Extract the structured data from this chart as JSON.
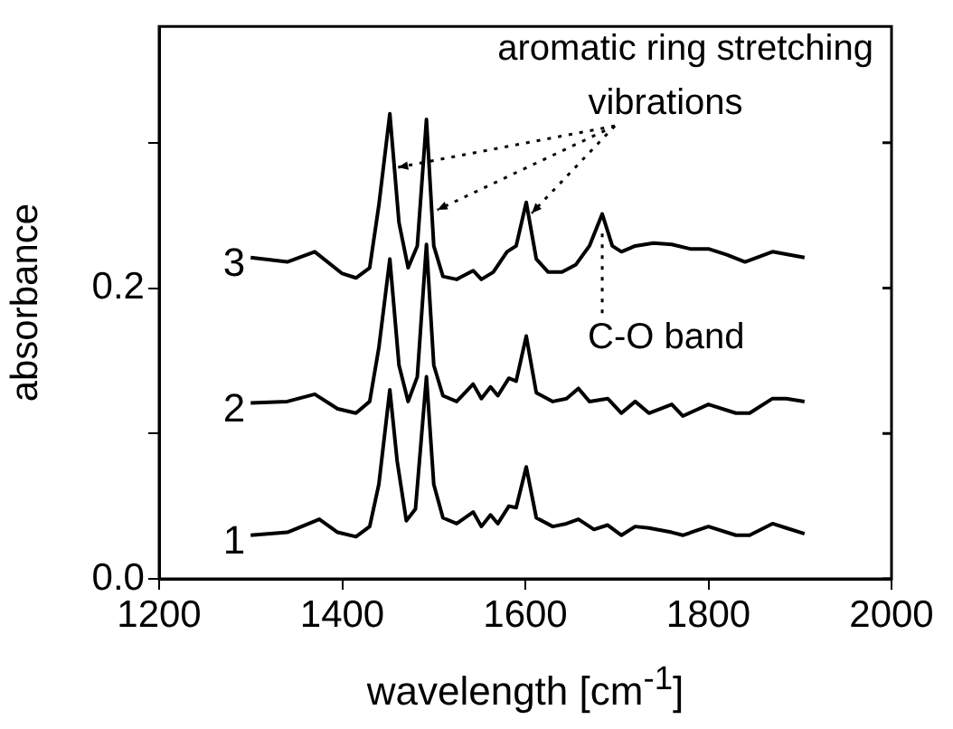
{
  "chart_data": {
    "type": "line",
    "xlabel": "wavelength [cm$^{-1}$]",
    "ylabel": "absorbance",
    "xlim": [
      1200,
      2000
    ],
    "xticks": [
      1200,
      1400,
      1600,
      1800,
      2000
    ],
    "ylim": [
      0,
      0.38
    ],
    "yticks": [
      {
        "value": 0,
        "label": "0.0"
      },
      {
        "value": 0.1,
        "label": null
      },
      {
        "value": 0.2,
        "label": "0.2"
      },
      {
        "value": 0.3,
        "label": null
      }
    ],
    "grid": false,
    "legend": false,
    "marker": "none",
    "line_style": "solid",
    "annotations": [
      {
        "text": "aromatic ring stretching vibrations",
        "x": 1461,
        "y": 0.283
      },
      {
        "text": "C-O band",
        "x": 1684,
        "y": 0.245
      }
    ],
    "series": [
      {
        "name": "1",
        "color": "#000000",
        "x": [
          1300,
          1340,
          1375,
          1395,
          1415,
          1430,
          1440,
          1452,
          1460,
          1470,
          1480,
          1492,
          1500,
          1510,
          1525,
          1543,
          1552,
          1562,
          1570,
          1582,
          1590,
          1601,
          1612,
          1630,
          1645,
          1658,
          1675,
          1690,
          1705,
          1720,
          1735,
          1760,
          1772,
          1800,
          1830,
          1845,
          1870,
          1885,
          1905
        ],
        "values": [
          0.03,
          0.032,
          0.041,
          0.032,
          0.029,
          0.036,
          0.065,
          0.13,
          0.081,
          0.04,
          0.048,
          0.139,
          0.065,
          0.042,
          0.038,
          0.046,
          0.036,
          0.044,
          0.038,
          0.05,
          0.049,
          0.077,
          0.042,
          0.036,
          0.038,
          0.041,
          0.034,
          0.037,
          0.03,
          0.036,
          0.035,
          0.032,
          0.03,
          0.036,
          0.03,
          0.03,
          0.038,
          0.035,
          0.031
        ]
      },
      {
        "name": "2",
        "color": "#000000",
        "x": [
          1300,
          1340,
          1370,
          1395,
          1415,
          1430,
          1440,
          1452,
          1462,
          1472,
          1482,
          1492,
          1500,
          1510,
          1525,
          1543,
          1552,
          1562,
          1570,
          1582,
          1590,
          1601,
          1612,
          1630,
          1645,
          1658,
          1670,
          1690,
          1705,
          1720,
          1735,
          1760,
          1772,
          1800,
          1830,
          1845,
          1870,
          1885,
          1905
        ],
        "values": [
          0.121,
          0.122,
          0.127,
          0.117,
          0.114,
          0.122,
          0.159,
          0.22,
          0.147,
          0.122,
          0.139,
          0.23,
          0.147,
          0.126,
          0.122,
          0.134,
          0.124,
          0.132,
          0.126,
          0.138,
          0.136,
          0.167,
          0.128,
          0.122,
          0.124,
          0.131,
          0.122,
          0.124,
          0.114,
          0.122,
          0.114,
          0.12,
          0.112,
          0.12,
          0.114,
          0.114,
          0.124,
          0.124,
          0.122
        ]
      },
      {
        "name": "3",
        "color": "#000000",
        "x": [
          1300,
          1340,
          1370,
          1400,
          1415,
          1430,
          1440,
          1452,
          1462,
          1472,
          1482,
          1492,
          1500,
          1510,
          1525,
          1543,
          1552,
          1565,
          1580,
          1590,
          1601,
          1612,
          1625,
          1640,
          1655,
          1670,
          1684,
          1695,
          1705,
          1720,
          1740,
          1760,
          1780,
          1800,
          1820,
          1840,
          1870,
          1905
        ],
        "values": [
          0.221,
          0.218,
          0.225,
          0.21,
          0.207,
          0.214,
          0.257,
          0.32,
          0.245,
          0.214,
          0.229,
          0.316,
          0.229,
          0.208,
          0.206,
          0.212,
          0.206,
          0.211,
          0.225,
          0.229,
          0.259,
          0.22,
          0.211,
          0.211,
          0.216,
          0.229,
          0.251,
          0.229,
          0.225,
          0.229,
          0.231,
          0.23,
          0.227,
          0.227,
          0.223,
          0.218,
          0.225,
          0.221
        ]
      }
    ]
  }
}
